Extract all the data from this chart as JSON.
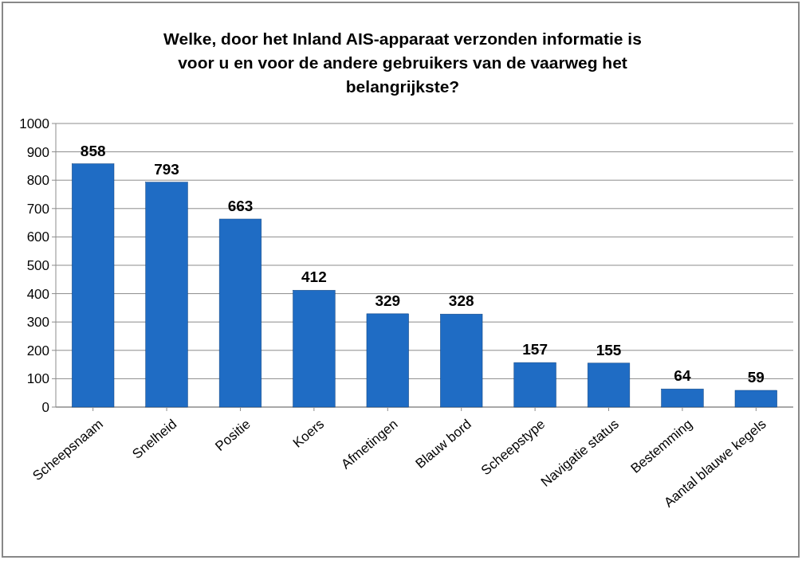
{
  "chart_data": {
    "type": "bar",
    "title": "Welke, door het Inland AIS-apparaat verzonden informatie is voor u en voor de andere gebruikers van de vaarweg het belangrijkste?",
    "categories": [
      "Scheepsnaam",
      "Snelheid",
      "Positie",
      "Koers",
      "Afmetingen",
      "Blauw bord",
      "Scheepstype",
      "Navigatie status",
      "Bestemming",
      "Aantal blauwe kegels"
    ],
    "values": [
      858,
      793,
      663,
      412,
      329,
      328,
      157,
      155,
      64,
      59
    ],
    "color": "#1f6cc4",
    "ylim": [
      0,
      1000
    ],
    "yticks": [
      0,
      100,
      200,
      300,
      400,
      500,
      600,
      700,
      800,
      900,
      1000
    ],
    "grid": "y",
    "data_labels": true
  }
}
